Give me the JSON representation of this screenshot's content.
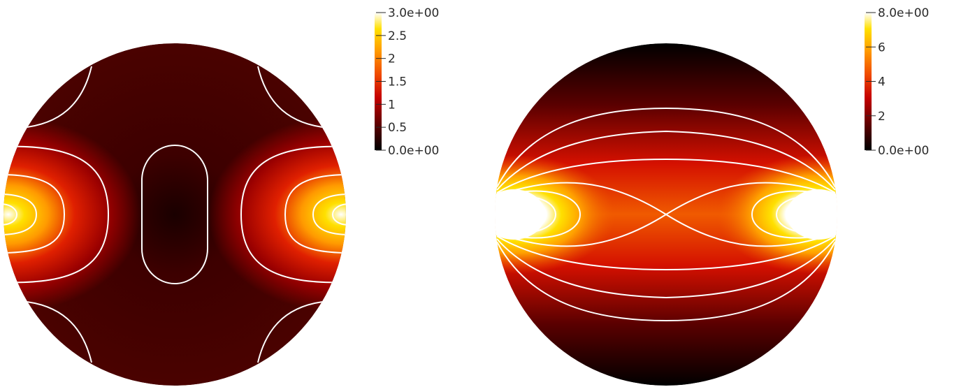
{
  "panels": [
    {
      "name": "left-field-plot",
      "colorbar": {
        "colormap": "black-body",
        "min": 0,
        "max": 3,
        "tick_labels": [
          "3.0e+00",
          "2.5",
          "2",
          "1.5",
          "1",
          "0.5",
          "0.0e+00"
        ]
      }
    },
    {
      "name": "right-field-plot",
      "colorbar": {
        "colormap": "black-body",
        "min": 0,
        "max": 8,
        "tick_labels": [
          "8.0e+00",
          "6",
          "4",
          "2",
          "0.0e+00"
        ]
      }
    }
  ],
  "contour_color": "#ffffff",
  "colormap_stops": [
    "#000000",
    "#5a0000",
    "#c40000",
    "#f04a00",
    "#ff9a00",
    "#ffe000",
    "#ffffff"
  ]
}
